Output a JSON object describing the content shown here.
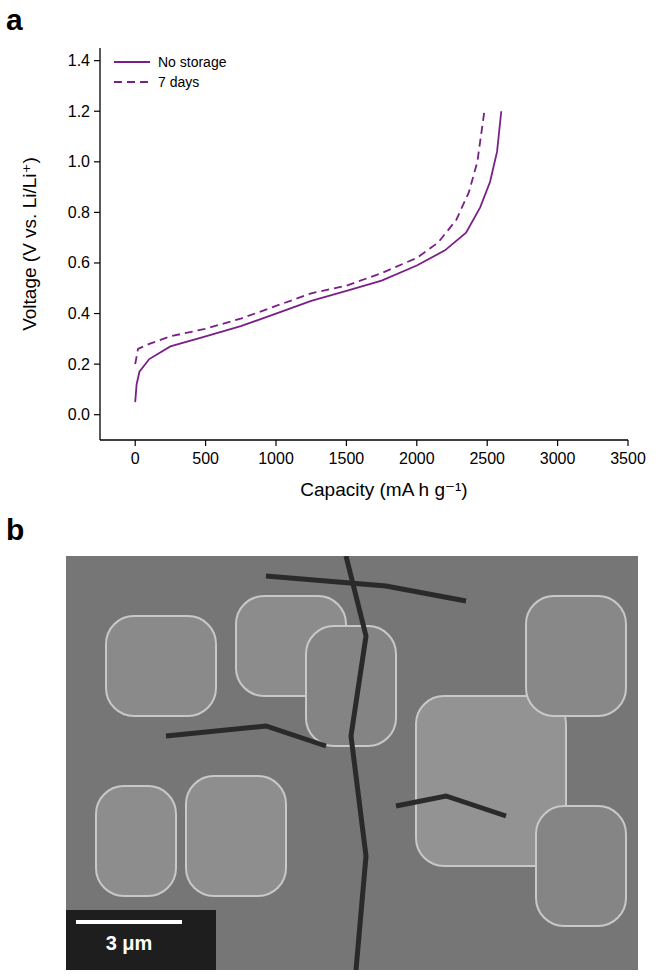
{
  "chart_data": {
    "type": "line",
    "x_label": "Capacity (mA h g⁻¹)",
    "y_label": "Voltage (V vs. Li/Li⁺)",
    "xlim": [
      -250,
      3500
    ],
    "xticks": [
      0,
      500,
      1000,
      1500,
      2000,
      2500,
      3000,
      3500
    ],
    "ylim": [
      -0.1,
      1.45
    ],
    "yticks": [
      {
        "value": 0,
        "label": "0.0"
      },
      0.2,
      0.4,
      0.6,
      0.8,
      {
        "value": 1,
        "label": "1.0"
      },
      1.2,
      1.4
    ],
    "legend": "upper left",
    "grid": false,
    "series": [
      {
        "name": "No storage",
        "color": "#7a1f87",
        "line_style": "solid",
        "x": [
          0,
          10,
          30,
          100,
          250,
          500,
          750,
          1000,
          1250,
          1500,
          1750,
          2000,
          2200,
          2350,
          2450,
          2520,
          2570,
          2600
        ],
        "values": [
          0.05,
          0.12,
          0.17,
          0.22,
          0.27,
          0.31,
          0.35,
          0.4,
          0.45,
          0.49,
          0.53,
          0.59,
          0.65,
          0.72,
          0.82,
          0.92,
          1.04,
          1.2
        ]
      },
      {
        "name": "7 days",
        "color": "#7a1f87",
        "line_style": "dashed",
        "x": [
          0,
          20,
          100,
          250,
          500,
          750,
          1000,
          1250,
          1500,
          1750,
          2000,
          2150,
          2280,
          2370,
          2430,
          2480
        ],
        "values": [
          0.2,
          0.26,
          0.28,
          0.31,
          0.34,
          0.38,
          0.43,
          0.48,
          0.51,
          0.56,
          0.62,
          0.68,
          0.77,
          0.88,
          1.0,
          1.2
        ]
      }
    ]
  },
  "panel_labels": [
    "a",
    "b"
  ],
  "image": {
    "scale_bar": "3 μm"
  }
}
